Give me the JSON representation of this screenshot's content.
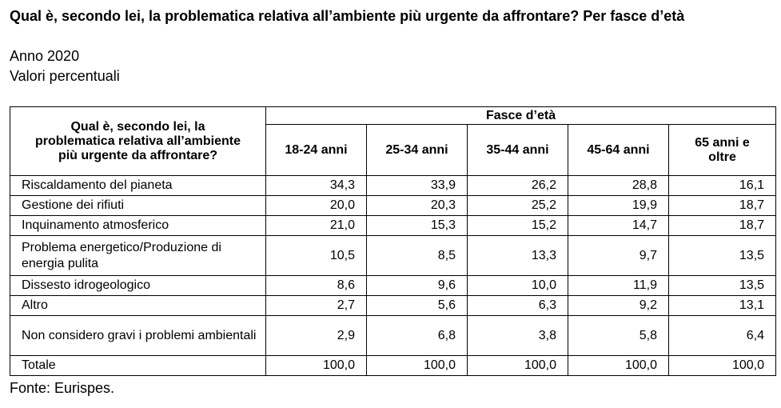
{
  "title": "Qual è, secondo lei, la problematica relativa all’ambiente più urgente da affrontare? Per fasce d’età",
  "year": "Anno 2020",
  "unit": "Valori percentuali",
  "table": {
    "row_header": "Qual è, secondo lei, la problematica relativa all’ambiente più urgente da affrontare?",
    "group_header": "Fasce d’età",
    "columns": [
      "18-24 anni",
      "25-34 anni",
      "35-44 anni",
      "45-64 anni",
      "65 anni e oltre"
    ],
    "rows": [
      {
        "label": "Riscaldamento del pianeta",
        "values": [
          "34,3",
          "33,9",
          "26,2",
          "28,8",
          "16,1"
        ]
      },
      {
        "label": "Gestione dei rifiuti",
        "values": [
          "20,0",
          "20,3",
          "25,2",
          "19,9",
          "18,7"
        ]
      },
      {
        "label": "Inquinamento atmosferico",
        "values": [
          "21,0",
          "15,3",
          "15,2",
          "14,7",
          "18,7"
        ]
      },
      {
        "label": "Problema energetico/Produzione di energia pulita",
        "values": [
          "10,5",
          "8,5",
          "13,3",
          "9,7",
          "13,5"
        ]
      },
      {
        "label": "Dissesto idrogeologico",
        "values": [
          "8,6",
          "9,6",
          "10,0",
          "11,9",
          "13,5"
        ]
      },
      {
        "label": "Altro",
        "values": [
          "2,7",
          "5,6",
          "6,3",
          "9,2",
          "13,1"
        ]
      },
      {
        "label": "Non considero gravi i problemi ambientali",
        "values": [
          "2,9",
          "6,8",
          "3,8",
          "5,8",
          "6,4"
        ]
      },
      {
        "label": "Totale",
        "values": [
          "100,0",
          "100,0",
          "100,0",
          "100,0",
          "100,0"
        ]
      }
    ]
  },
  "source": "Fonte: Eurispes."
}
